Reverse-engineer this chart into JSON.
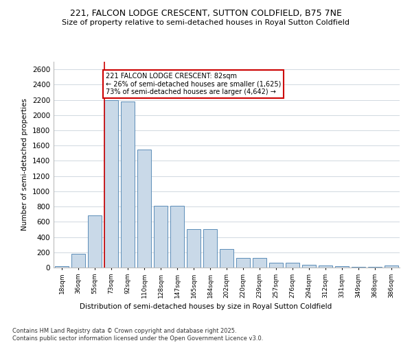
{
  "title1": "221, FALCON LODGE CRESCENT, SUTTON COLDFIELD, B75 7NE",
  "title2": "Size of property relative to semi-detached houses in Royal Sutton Coldfield",
  "xlabel": "Distribution of semi-detached houses by size in Royal Sutton Coldfield",
  "ylabel": "Number of semi-detached properties",
  "footnote1": "Contains HM Land Registry data © Crown copyright and database right 2025.",
  "footnote2": "Contains public sector information licensed under the Open Government Licence v3.0.",
  "annotation_line1": "221 FALCON LODGE CRESCENT: 82sqm",
  "annotation_line2": "← 26% of semi-detached houses are smaller (1,625)",
  "annotation_line3": "73% of semi-detached houses are larger (4,642) →",
  "bar_color": "#c9d9e8",
  "bar_edge_color": "#5b8db8",
  "highlight_color": "#cc0000",
  "background_color": "#ffffff",
  "grid_color": "#d0d8e0",
  "categories": [
    "18sqm",
    "36sqm",
    "55sqm",
    "73sqm",
    "92sqm",
    "110sqm",
    "128sqm",
    "147sqm",
    "165sqm",
    "184sqm",
    "202sqm",
    "220sqm",
    "239sqm",
    "257sqm",
    "276sqm",
    "294sqm",
    "312sqm",
    "331sqm",
    "349sqm",
    "368sqm",
    "386sqm"
  ],
  "values": [
    20,
    180,
    680,
    2200,
    2180,
    1550,
    810,
    810,
    500,
    500,
    240,
    130,
    130,
    60,
    60,
    40,
    30,
    15,
    10,
    5,
    30
  ],
  "highlight_bar_index": 3,
  "ylim": [
    0,
    2700
  ],
  "yticks": [
    0,
    200,
    400,
    600,
    800,
    1000,
    1200,
    1400,
    1600,
    1800,
    2000,
    2200,
    2400,
    2600
  ]
}
